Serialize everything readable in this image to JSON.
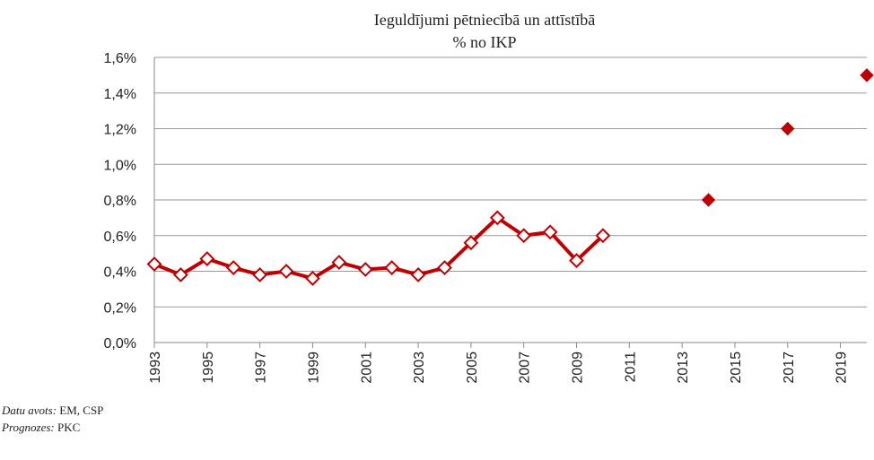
{
  "chart_data": {
    "type": "line",
    "title": "Ieguldījumi pētniecībā un attīstībā",
    "subtitle": "% no IKP",
    "xlim": [
      1993,
      2020
    ],
    "xticks": [
      1993,
      1995,
      1997,
      1999,
      2001,
      2003,
      2005,
      2007,
      2009,
      2011,
      2013,
      2015,
      2017,
      2019
    ],
    "ylim": [
      0,
      1.6
    ],
    "yticks": [
      {
        "value": 0,
        "label": "0,0%"
      },
      {
        "value": 0.2,
        "label": "0,2%"
      },
      {
        "value": 0.4,
        "label": "0,4%"
      },
      {
        "value": 0.6,
        "label": "0,6%"
      },
      {
        "value": 0.8,
        "label": "0,8%"
      },
      {
        "value": 1.0,
        "label": "1,0%"
      },
      {
        "value": 1.2,
        "label": "1,2%"
      },
      {
        "value": 1.4,
        "label": "1,4%"
      },
      {
        "value": 1.6,
        "label": "1,6%"
      }
    ],
    "grid": true,
    "series": [
      {
        "color": "#c00000",
        "line": true,
        "marker": "open-diamond",
        "x": [
          1993,
          1994,
          1995,
          1996,
          1997,
          1998,
          1999,
          2000,
          2001,
          2002,
          2003,
          2004,
          2005,
          2006,
          2007,
          2008,
          2009,
          2010
        ],
        "values": [
          0.44,
          0.38,
          0.47,
          0.42,
          0.38,
          0.4,
          0.36,
          0.45,
          0.41,
          0.42,
          0.38,
          0.42,
          0.56,
          0.7,
          0.6,
          0.62,
          0.46,
          0.6
        ]
      },
      {
        "color": "#c00000",
        "line": false,
        "marker": "filled-diamond",
        "x": [
          2014,
          2017,
          2020
        ],
        "values": [
          0.8,
          1.2,
          1.5
        ]
      }
    ]
  },
  "notes": [
    {
      "label": "Datu avots:",
      "text": "EM, CSP"
    },
    {
      "label": "Prognozes:",
      "text": "PKC"
    }
  ]
}
